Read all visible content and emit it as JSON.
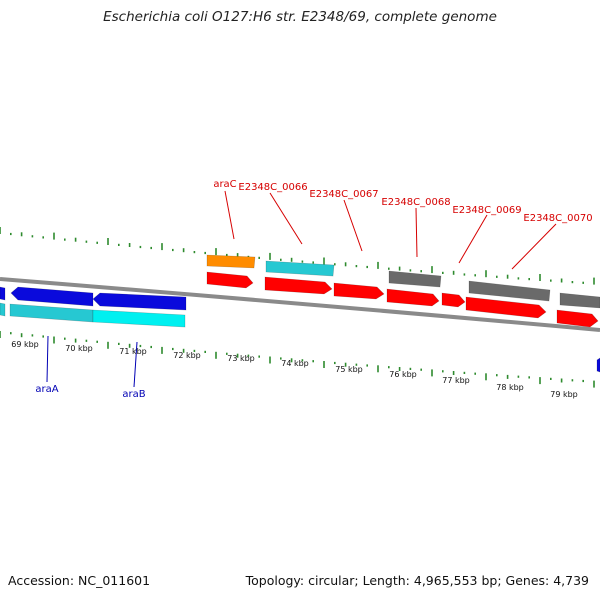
{
  "title": "Escherichia coli O127:H6 str. E2348/69, complete genome",
  "footer": {
    "accession": "Accession: NC_011601",
    "summary": "Topology: circular; Length: 4,965,553 bp; Genes: 4,739"
  },
  "colors": {
    "backbone": "#8a8a8a",
    "tick": "#2e8b2e",
    "top_label": "#d60000",
    "bottom_label": "#0000b4",
    "orange": "#ff8c00",
    "cyan": "#26c8d2",
    "cyan_light": "#00f0f0",
    "red": "#ff0000",
    "gray": "#6a6a6a",
    "blue": "#0a0adc"
  },
  "kbp_labels": [
    "69 kbp",
    "70 kbp",
    "71 kbp",
    "72 kbp",
    "73 kbp",
    "74 kbp",
    "75 kbp",
    "76 kbp",
    "77 kbp",
    "78 kbp",
    "79 kbp"
  ],
  "top_labels": [
    "araC",
    "E2348C_0066",
    "E2348C_0067",
    "E2348C_0068",
    "E2348C_0069",
    "E2348C_0070"
  ],
  "bottom_labels": [
    "araA",
    "araB"
  ]
}
